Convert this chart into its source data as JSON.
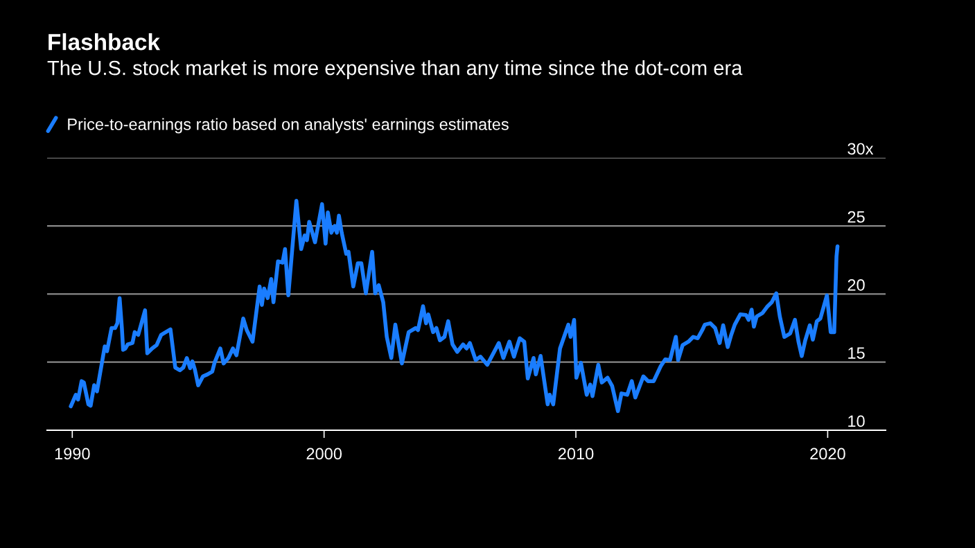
{
  "chart_data": {
    "type": "line",
    "title": "Flashback",
    "subtitle": "The U.S. stock market is more expensive than any time since the dot-com era",
    "x": [
      1989.94,
      1990.14,
      1990.23,
      1990.37,
      1990.46,
      1990.64,
      1990.73,
      1990.87,
      1990.98,
      1991.29,
      1991.38,
      1991.56,
      1991.7,
      1991.79,
      1991.88,
      1991.97,
      1992.02,
      1992.11,
      1992.2,
      1992.39,
      1992.48,
      1992.62,
      1992.89,
      1992.98,
      1993.17,
      1993.35,
      1993.53,
      1993.76,
      1993.9,
      1994.09,
      1994.27,
      1994.41,
      1994.55,
      1994.68,
      1994.77,
      1994.87,
      1995.0,
      1995.19,
      1995.37,
      1995.56,
      1995.65,
      1995.88,
      1996.01,
      1996.2,
      1996.38,
      1996.52,
      1996.79,
      1996.93,
      1997.16,
      1997.44,
      1997.53,
      1997.62,
      1997.76,
      1997.9,
      1997.99,
      1998.17,
      1998.35,
      1998.45,
      1998.58,
      1998.9,
      1999.09,
      1999.23,
      1999.32,
      1999.41,
      1999.64,
      1999.92,
      2000.06,
      2000.15,
      2000.29,
      2000.42,
      2000.51,
      2000.59,
      2000.7,
      2000.88,
      2000.97,
      2001.16,
      2001.34,
      2001.48,
      2001.66,
      2001.91,
      2002.03,
      2002.17,
      2002.35,
      2002.49,
      2002.67,
      2002.83,
      2003.09,
      2003.36,
      2003.64,
      2003.73,
      2003.93,
      2004.05,
      2004.14,
      2004.33,
      2004.46,
      2004.6,
      2004.78,
      2004.93,
      2005.1,
      2005.29,
      2005.52,
      2005.66,
      2005.79,
      2006.02,
      2006.21,
      2006.48,
      2006.94,
      2007.12,
      2007.36,
      2007.54,
      2007.77,
      2007.95,
      2008.09,
      2008.32,
      2008.41,
      2008.6,
      2008.88,
      2008.96,
      2009.1,
      2009.37,
      2009.7,
      2009.79,
      2009.93,
      2010.02,
      2010.2,
      2010.43,
      2010.57,
      2010.66,
      2010.89,
      2011.03,
      2011.26,
      2011.44,
      2011.67,
      2011.81,
      2012.04,
      2012.22,
      2012.36,
      2012.68,
      2012.87,
      2013.09,
      2013.37,
      2013.55,
      2013.74,
      2013.97,
      2014.06,
      2014.24,
      2014.47,
      2014.66,
      2014.84,
      2015.02,
      2015.12,
      2015.34,
      2015.53,
      2015.71,
      2015.85,
      2016.03,
      2016.17,
      2016.31,
      2016.53,
      2016.76,
      2016.86,
      2016.98,
      2017.07,
      2017.18,
      2017.41,
      2017.59,
      2017.78,
      2017.96,
      2018.1,
      2018.28,
      2018.51,
      2018.7,
      2018.84,
      2018.97,
      2019.11,
      2019.29,
      2019.41,
      2019.57,
      2019.71,
      2019.97,
      2020.12,
      2020.26,
      2020.35,
      2020.39
    ],
    "series": [
      {
        "name": "Price-to-earnings ratio based on analysts' earnings estimates",
        "color": "#1a7dff",
        "values": [
          11.75,
          12.6,
          12.25,
          13.6,
          13.5,
          11.9,
          11.8,
          13.3,
          12.85,
          16.15,
          15.8,
          17.5,
          17.5,
          17.85,
          19.7,
          17.5,
          15.9,
          16.0,
          16.3,
          16.4,
          17.2,
          17.0,
          18.8,
          15.65,
          16.0,
          16.25,
          17.0,
          17.25,
          17.4,
          14.6,
          14.4,
          14.6,
          15.3,
          14.55,
          15.05,
          14.45,
          13.3,
          13.95,
          14.1,
          14.3,
          14.95,
          16.0,
          14.9,
          15.3,
          16.0,
          15.5,
          18.2,
          17.35,
          16.5,
          20.55,
          19.2,
          20.4,
          19.7,
          21.1,
          19.4,
          22.4,
          22.3,
          23.3,
          19.9,
          26.85,
          23.3,
          24.3,
          23.95,
          25.3,
          23.8,
          26.6,
          23.7,
          26.0,
          24.5,
          25.0,
          24.5,
          25.75,
          24.5,
          22.95,
          23.1,
          20.55,
          22.25,
          22.25,
          20.05,
          23.1,
          20.05,
          20.65,
          19.4,
          16.85,
          15.3,
          17.75,
          14.9,
          17.2,
          17.5,
          17.35,
          19.1,
          17.85,
          18.5,
          17.2,
          17.5,
          16.6,
          16.85,
          18.0,
          16.3,
          15.75,
          16.3,
          16.0,
          16.4,
          15.15,
          15.4,
          14.8,
          16.4,
          15.3,
          16.5,
          15.4,
          16.75,
          16.5,
          13.8,
          15.3,
          14.1,
          15.45,
          11.9,
          12.6,
          11.9,
          16.0,
          17.75,
          16.85,
          18.1,
          13.85,
          14.95,
          12.6,
          13.35,
          12.5,
          14.8,
          13.5,
          13.85,
          13.25,
          11.4,
          12.7,
          12.6,
          13.6,
          12.4,
          13.95,
          13.6,
          13.6,
          14.7,
          15.2,
          15.15,
          16.85,
          15.15,
          16.25,
          16.5,
          16.85,
          16.75,
          17.35,
          17.75,
          17.85,
          17.5,
          16.4,
          17.7,
          16.1,
          17.0,
          17.75,
          18.5,
          18.45,
          18.1,
          18.85,
          17.6,
          18.35,
          18.6,
          19.05,
          19.4,
          20.05,
          18.35,
          16.85,
          17.1,
          18.1,
          16.5,
          15.45,
          16.6,
          17.7,
          16.65,
          18.0,
          18.2,
          19.9,
          17.2,
          17.2,
          22.75,
          23.5
        ]
      }
    ],
    "xlim": [
      1989,
      2022.3
    ],
    "xticks": [
      1990,
      2000,
      2010,
      2020
    ],
    "ylim": [
      10,
      30
    ],
    "yticks": [
      10,
      15,
      20,
      25,
      {
        "value": 30,
        "label": "30x"
      }
    ],
    "grid": "y",
    "legend": "top left",
    "marker": "none",
    "line_style": "solid"
  }
}
